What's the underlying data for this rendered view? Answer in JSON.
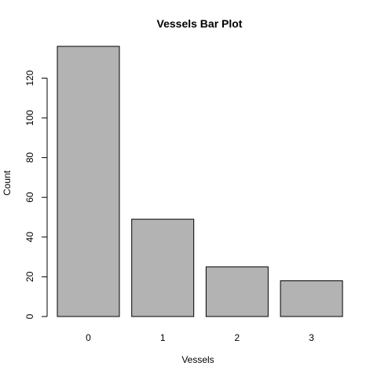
{
  "chart_data": {
    "type": "bar",
    "title": "Vessels Bar Plot",
    "xlabel": "Vessels",
    "ylabel": "Count",
    "categories": [
      "0",
      "1",
      "2",
      "3"
    ],
    "values": [
      136,
      49,
      25,
      18
    ],
    "yticks": [
      0,
      20,
      40,
      60,
      80,
      100,
      120
    ],
    "ylim": [
      0,
      136
    ],
    "bar_color": "#b3b3b3",
    "bar_border_color": "#000000",
    "grid": false,
    "legend": "none"
  }
}
